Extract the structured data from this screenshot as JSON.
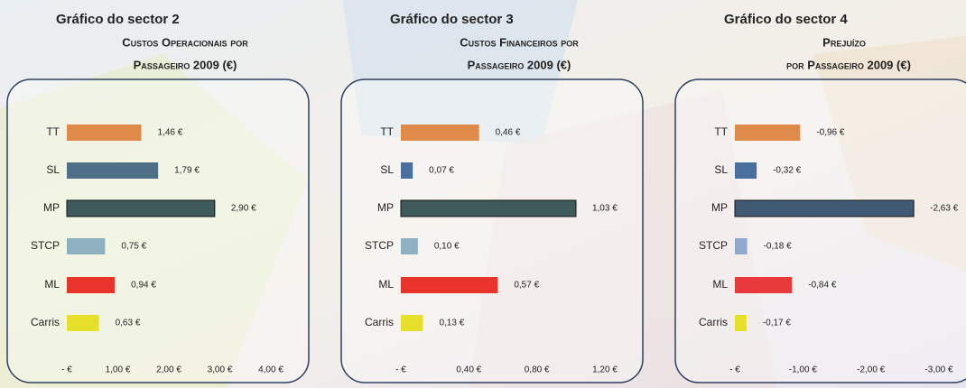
{
  "chart_data": [
    {
      "type": "bar",
      "title": "Gráfico do sector 2",
      "subtitle": [
        "Custos Operacionais por",
        "Passageiro 2009 (€)"
      ],
      "categories": [
        "TT",
        "SL",
        "MP",
        "STCP",
        "ML",
        "Carris"
      ],
      "values": [
        1.46,
        1.79,
        2.9,
        0.75,
        0.94,
        0.63
      ],
      "value_labels": [
        "1,46 €",
        "1,79 €",
        "2,90 €",
        "0,75 €",
        "0,94 €",
        "0,63 €"
      ],
      "colors": [
        "#e08a4a",
        "#4f6f86",
        "#3f5a5a",
        "#8fb0c0",
        "#e8342a",
        "#e6e02a"
      ],
      "xlim": [
        0,
        4
      ],
      "xticks": [
        {
          "value": 0,
          "label": "-  €"
        },
        {
          "value": 1,
          "label": "1,00 €"
        },
        {
          "value": 2,
          "label": "2,00 €"
        },
        {
          "value": 3,
          "label": "3,00 €"
        },
        {
          "value": 4,
          "label": "4,00 €"
        }
      ]
    },
    {
      "type": "bar",
      "title": "Gráfico do sector 3",
      "subtitle": [
        "Custos Financeiros por",
        "Passageiro 2009 (€)"
      ],
      "categories": [
        "TT",
        "SL",
        "MP",
        "STCP",
        "ML",
        "Carris"
      ],
      "values": [
        0.46,
        0.07,
        1.03,
        0.1,
        0.57,
        0.13
      ],
      "value_labels": [
        "0,46 €",
        "0,07 €",
        "1,03 €",
        "0,10 €",
        "0,57 €",
        "0,13 €"
      ],
      "colors": [
        "#e08a4a",
        "#4a6e9e",
        "#3f5a5a",
        "#8fb0c0",
        "#e8342a",
        "#e6e02a"
      ],
      "xlim": [
        0,
        1.2
      ],
      "xticks": [
        {
          "value": 0,
          "label": "-  €"
        },
        {
          "value": 0.4,
          "label": "0,40 €"
        },
        {
          "value": 0.8,
          "label": "0,80 €"
        },
        {
          "value": 1.2,
          "label": "1,20 €"
        }
      ]
    },
    {
      "type": "bar",
      "title": "Gráfico do sector 4",
      "subtitle": [
        "Prejuízo",
        "por Passageiro 2009 (€)"
      ],
      "categories": [
        "TT",
        "SL",
        "MP",
        "STCP",
        "ML",
        "Carris"
      ],
      "values": [
        -0.96,
        -0.32,
        -2.63,
        -0.18,
        -0.84,
        -0.17
      ],
      "value_labels": [
        "-0,96 €",
        "-0,32 €",
        "-2,63 €",
        "-0,18 €",
        "-0,84 €",
        "-0,17 €"
      ],
      "colors": [
        "#e08a4a",
        "#4a6e9e",
        "#3f5a72",
        "#8fa8cc",
        "#e83a3a",
        "#e6e02a"
      ],
      "xlim": [
        0,
        -3
      ],
      "xticks": [
        {
          "value": 0,
          "label": "-  €"
        },
        {
          "value": -1,
          "label": "-1,00 €"
        },
        {
          "value": -2,
          "label": "-2,00 €"
        },
        {
          "value": -3,
          "label": "-3,00 €"
        }
      ]
    }
  ]
}
